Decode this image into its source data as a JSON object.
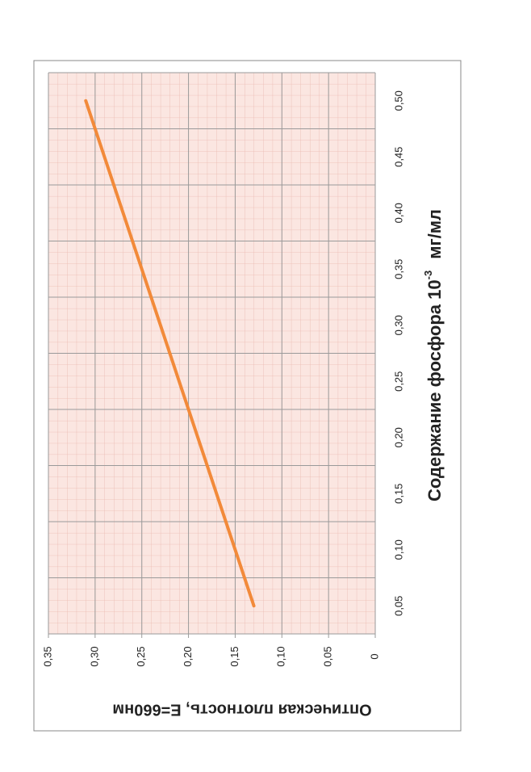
{
  "chart_data": {
    "type": "line",
    "x_label": "Содержание фосфора 10",
    "x_label_sup": "-3",
    "x_label_unit": "мг/мл",
    "y_label": "Оптическая плотность, E=660нм",
    "categories": [
      "0,05",
      "0,10",
      "0,15",
      "0,20",
      "0,25",
      "0,30",
      "0,35",
      "0,40",
      "0,45",
      "0,50"
    ],
    "series": [
      {
        "name": "Оптическая плотность",
        "color": "#f28a3a",
        "values": [
          0.13,
          0.15,
          0.17,
          0.19,
          0.21,
          0.23,
          0.25,
          0.27,
          0.29,
          0.31
        ]
      }
    ],
    "ylim": [
      0,
      0.35
    ],
    "yticks": [
      0,
      {
        "value": 0.05,
        "label": "0,05"
      },
      {
        "value": 0.1,
        "label": "0,10"
      },
      {
        "value": 0.15,
        "label": "0,15"
      },
      {
        "value": 0.2,
        "label": "0,20"
      },
      {
        "value": 0.25,
        "label": "0,25"
      },
      {
        "value": 0.3,
        "label": "0,30"
      },
      {
        "value": 0.35,
        "label": "0,35"
      }
    ],
    "grid": true
  }
}
